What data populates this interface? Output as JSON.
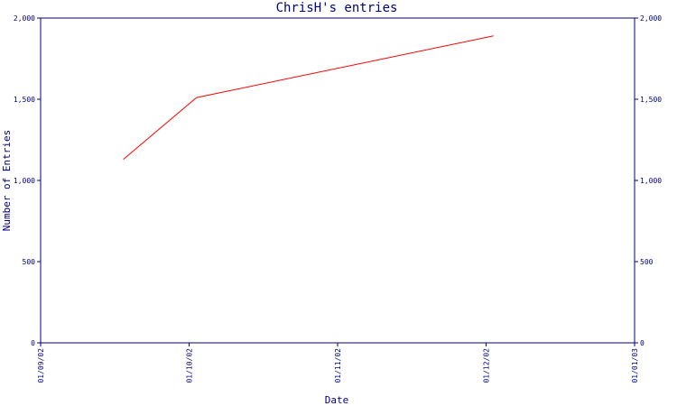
{
  "chart_data": {
    "type": "line",
    "title": "ChrisH's entries",
    "xlabel": "Date",
    "ylabel": "Number of Entries",
    "x_ticks": [
      "01/09/02",
      "01/10/02",
      "01/11/02",
      "01/12/02",
      "01/01/03"
    ],
    "y_ticks": [
      "0",
      "500",
      "1,000",
      "1,500",
      "2,000"
    ],
    "y_tick_values": [
      0,
      500,
      1000,
      1500,
      2000
    ],
    "ylim": [
      0,
      2000
    ],
    "xlim": [
      "2002-09-01",
      "2003-01-01"
    ],
    "series": [
      {
        "x": [
          "2002-09-18",
          "2002-10-03",
          "2002-12-03"
        ],
        "y": [
          1130,
          1510,
          1890
        ]
      }
    ],
    "grid": false,
    "right_axis": true,
    "colors": {
      "axes": "#000080",
      "line": "#ff0000"
    }
  }
}
